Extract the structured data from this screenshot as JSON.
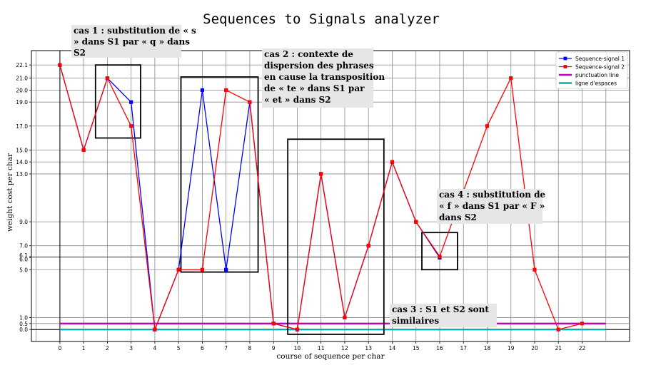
{
  "chart_data": {
    "type": "line",
    "title": "Sequences to Signals analyzer",
    "xlabel": "course of sequence per char",
    "ylabel": "weight cost per char",
    "x": [
      0,
      1,
      2,
      3,
      4,
      5,
      6,
      7,
      8,
      9,
      10,
      11,
      12,
      13,
      14,
      15,
      16,
      17,
      18,
      19,
      20,
      21,
      22
    ],
    "xlim": [
      -1.2,
      24
    ],
    "ylim": [
      -1.0,
      23.3
    ],
    "x_ticks": [
      0,
      1,
      2,
      3,
      4,
      5,
      6,
      7,
      8,
      9,
      10,
      11,
      12,
      13,
      14,
      15,
      16,
      17,
      18,
      19,
      20,
      21,
      22
    ],
    "y_ticks": [
      {
        "value": 0.0,
        "label": "0.0"
      },
      {
        "value": 0.5,
        "label": "0.5"
      },
      {
        "value": 1.0,
        "label": "1.0"
      },
      {
        "value": 5.0,
        "label": "5.0"
      },
      {
        "value": 6.0,
        "label": "6.0"
      },
      {
        "value": 6.1,
        "label": "6.1"
      },
      {
        "value": 7.0,
        "label": "7.0"
      },
      {
        "value": 9.0,
        "label": "9.0"
      },
      {
        "value": 13.0,
        "label": "13.0"
      },
      {
        "value": 14.0,
        "label": "14.0"
      },
      {
        "value": 15.0,
        "label": "15.0"
      },
      {
        "value": 17.0,
        "label": "17.0"
      },
      {
        "value": 19.0,
        "label": "19.0"
      },
      {
        "value": 20.0,
        "label": "20.0"
      },
      {
        "value": 21.0,
        "label": "21.0"
      },
      {
        "value": 22.1,
        "label": "22.1"
      }
    ],
    "grid": true,
    "legend_position": "top-right",
    "series": [
      {
        "name": "Sequence-signal 1",
        "color": "#0000ff",
        "values": [
          22.1,
          15,
          21,
          19,
          0,
          5,
          20,
          5,
          19,
          0.5,
          0,
          13,
          1,
          7,
          14,
          9,
          6,
          null,
          null,
          null,
          null,
          null,
          null
        ]
      },
      {
        "name": "Sequence-signal 2",
        "color": "#ff0000",
        "values": [
          22.1,
          15,
          21,
          17,
          0,
          5,
          5,
          20,
          19,
          0.5,
          0,
          13,
          1,
          7,
          14,
          9,
          6.1,
          null,
          17,
          21,
          5,
          0,
          0.5
        ]
      }
    ],
    "reference_lines": [
      {
        "name": "punctuation line",
        "color": "#c000c0",
        "value": 0.5,
        "x_range": [
          0,
          23
        ]
      },
      {
        "name": "ligne d'espaces",
        "color": "#00b0b0",
        "value": 0.0,
        "x_range": [
          0,
          23
        ]
      }
    ],
    "annotations": [
      {
        "name": "cas 1",
        "lines": [
          "cas 1 : substitution de « s",
          "» dans S1 par « q » dans",
          "S2"
        ],
        "box": {
          "x": [
            1.5,
            3.4
          ],
          "y": [
            16,
            22.1
          ]
        }
      },
      {
        "name": "cas 2",
        "lines": [
          "cas 2 : contexte de",
          "dispersion des phrases",
          "en cause la transposition",
          "de « te » dans S1 par",
          "« et » dans S2"
        ],
        "box": {
          "x": [
            5.1,
            8.35
          ],
          "y": [
            4.8,
            21.1
          ]
        }
      },
      {
        "name": "cas 3",
        "lines": [
          "cas 3 : S1 et S2 sont",
          "similaires"
        ],
        "box": {
          "x": [
            9.6,
            13.65
          ],
          "y": [
            -0.4,
            15.9
          ]
        }
      },
      {
        "name": "cas 4",
        "lines": [
          "cas 4 : substitution de",
          "« f » dans S1 par « F »",
          "dans S2"
        ],
        "box": {
          "x": [
            15.25,
            16.75
          ],
          "y": [
            5,
            8.1
          ]
        }
      }
    ]
  }
}
